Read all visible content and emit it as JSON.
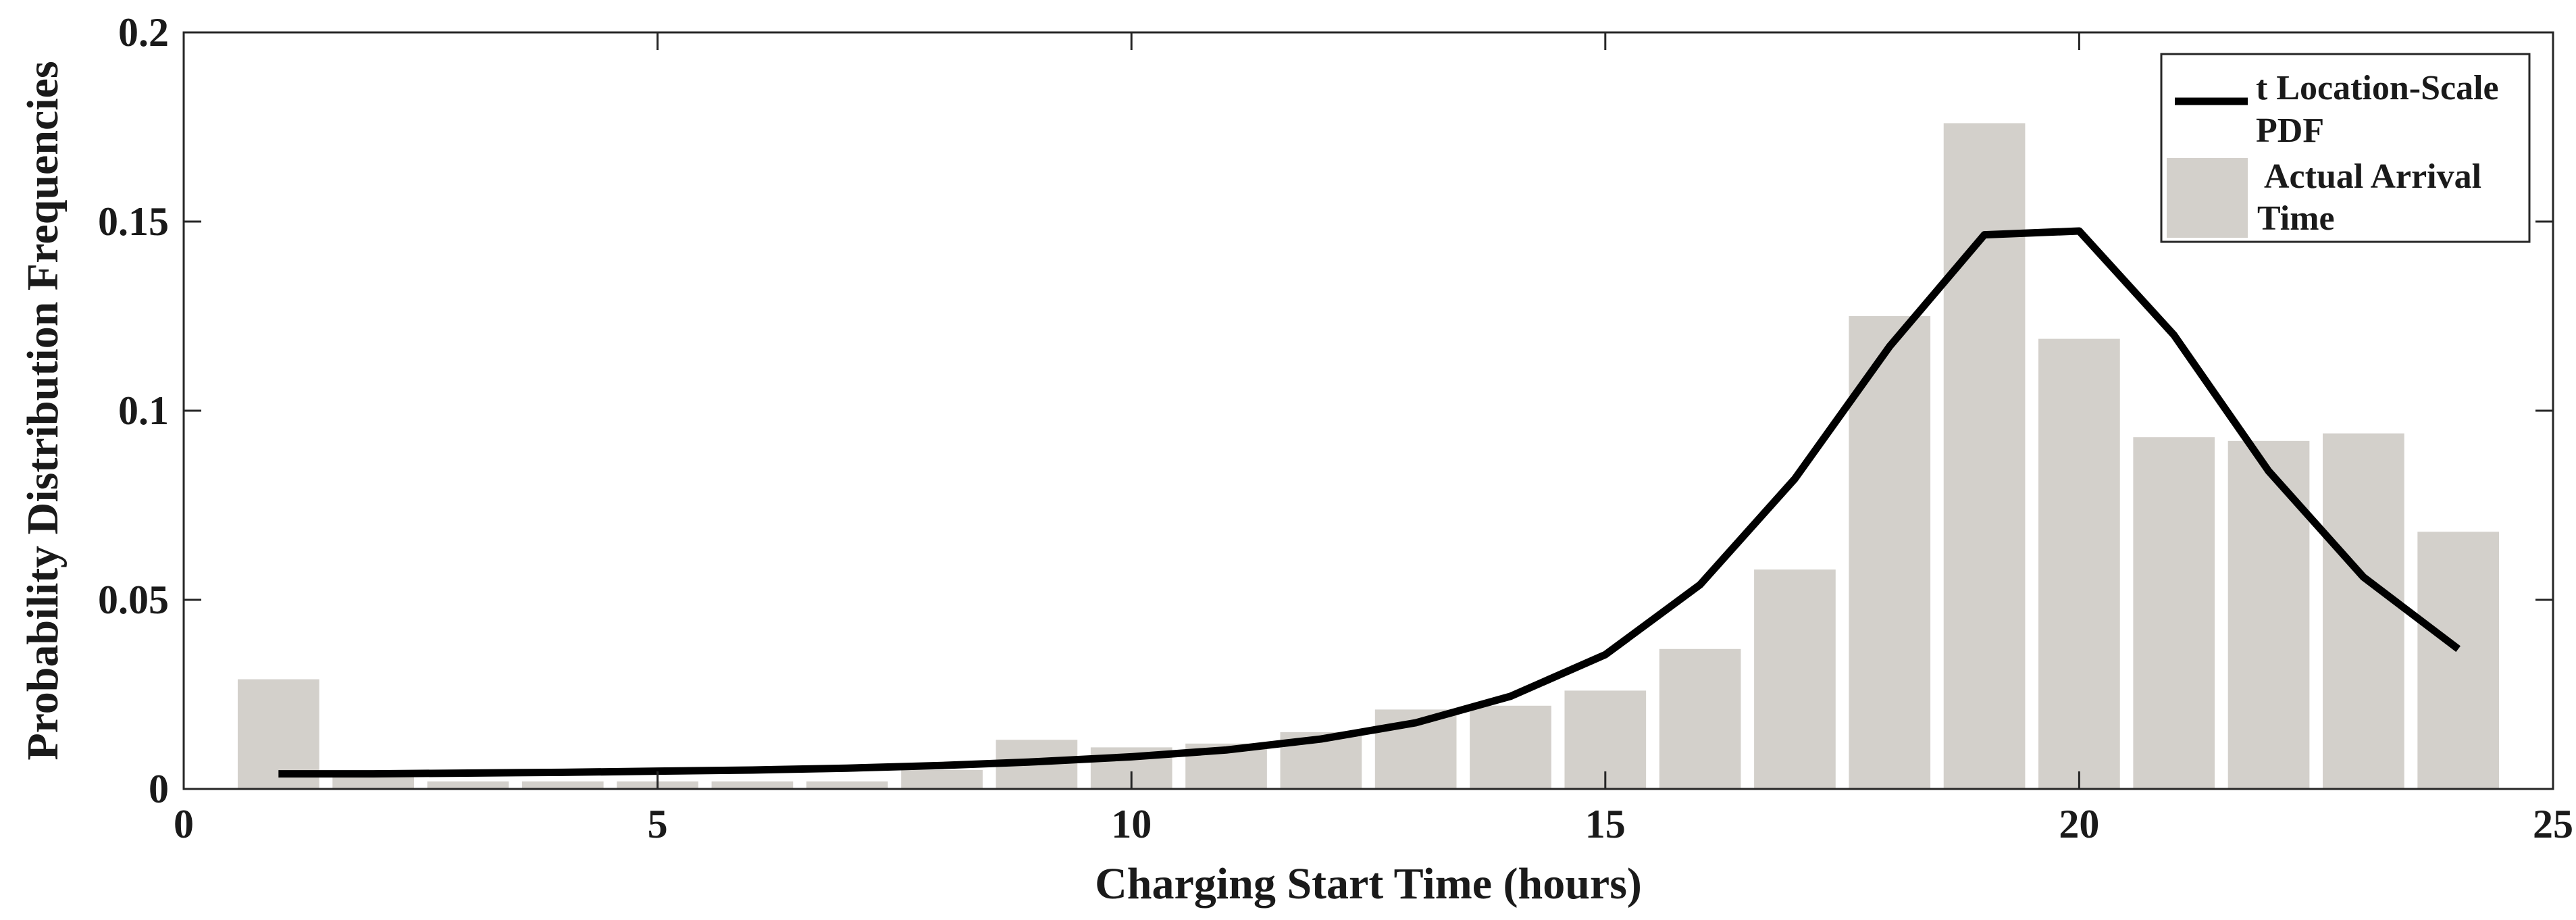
{
  "chart_data": {
    "type": "bar",
    "xlabel": "Charging Start Time (hours)",
    "ylabel": "Probability Distribution Frequencies",
    "xlim": [
      0,
      25
    ],
    "ylim": [
      0,
      0.2
    ],
    "xticks": [
      0,
      5,
      10,
      15,
      20,
      25
    ],
    "yticks": [
      0,
      0.05,
      0.1,
      0.15,
      0.2
    ],
    "xtick_labels": [
      "0",
      "5",
      "10",
      "15",
      "20",
      "25"
    ],
    "ytick_labels": [
      "0",
      "0.05",
      "0.1",
      "0.15",
      "0.2"
    ],
    "grid": false,
    "legend_position": "top-right",
    "categories": [
      1,
      2,
      3,
      4,
      5,
      6,
      7,
      8,
      9,
      10,
      11,
      12,
      13,
      14,
      15,
      16,
      17,
      18,
      19,
      20,
      21,
      22,
      23,
      24
    ],
    "series": [
      {
        "name": "Actual Arrival Time",
        "legend_lines": [
          "Actual Arrival",
          "Time"
        ],
        "kind": "bar",
        "color": "#d3d0cb",
        "values": [
          0.029,
          0.004,
          0.002,
          0.002,
          0.002,
          0.002,
          0.002,
          0.005,
          0.013,
          0.011,
          0.012,
          0.015,
          0.021,
          0.022,
          0.026,
          0.037,
          0.058,
          0.125,
          0.176,
          0.119,
          0.093,
          0.092,
          0.094,
          0.068
        ]
      },
      {
        "name": "t Location-Scale PDF",
        "legend_lines": [
          "t Location-Scale",
          "PDF"
        ],
        "kind": "line",
        "color": "#000000",
        "x": [
          1,
          2,
          3,
          4,
          5,
          6,
          7,
          8,
          9,
          10,
          11,
          12,
          13,
          14,
          15,
          16,
          17,
          18,
          19,
          20,
          21,
          22,
          23,
          24
        ],
        "values": [
          0.004,
          0.004,
          0.0042,
          0.0044,
          0.0047,
          0.005,
          0.0055,
          0.0062,
          0.0072,
          0.0085,
          0.0103,
          0.0132,
          0.0175,
          0.0245,
          0.0355,
          0.054,
          0.082,
          0.117,
          0.1465,
          0.1475,
          0.12,
          0.084,
          0.056,
          0.037
        ]
      }
    ]
  }
}
